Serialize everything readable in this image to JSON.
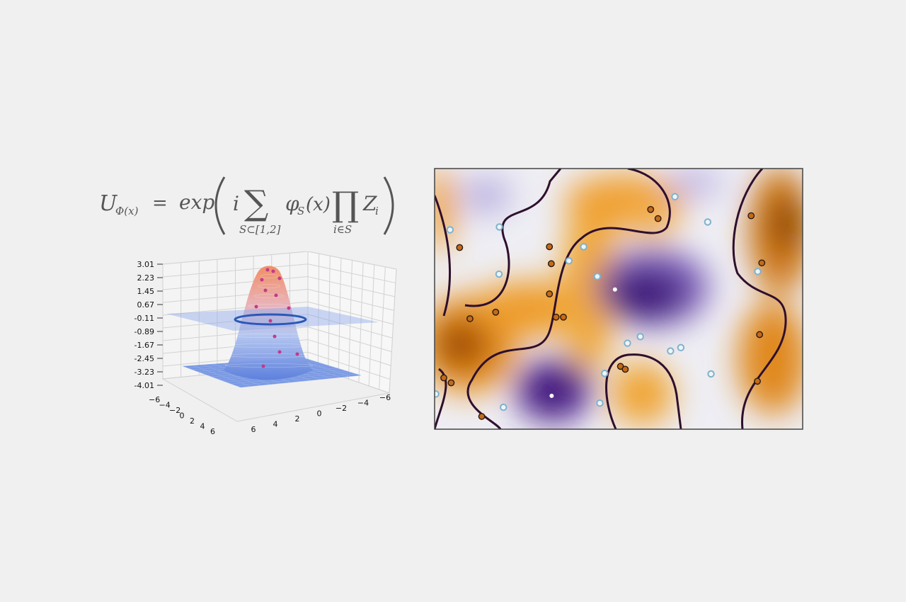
{
  "formula": {
    "lhs_main": "U",
    "lhs_sub": "Φ(x)",
    "equals": "=",
    "exp": "exp",
    "i": "i",
    "sum_symbol": "∑",
    "sum_sub": "S⊂[1,2]",
    "phi": "φ",
    "phi_sub": "S",
    "phi_arg": "(x)",
    "prod_symbol": "∏",
    "prod_sub": "i∈S",
    "z": "Z",
    "z_sub": "i"
  },
  "chart_data": [
    {
      "type": "surface3d",
      "z_ticks": [
        "3.01",
        "2.23",
        "1.45",
        "0.67",
        "-0.11",
        "-0.89",
        "-1.67",
        "-2.45",
        "-3.23",
        "-4.01"
      ],
      "x_ticks_left": [
        "−6",
        "−4",
        "−2",
        "0",
        "2",
        "4",
        "6"
      ],
      "x_ticks_right": [
        "6",
        "4",
        "2",
        "0",
        "−2",
        "−4",
        "−6"
      ],
      "zlim": [
        -4.01,
        3.01
      ],
      "colors": {
        "surface_top": "#f4a47c",
        "surface_bottom": "#6a8ce0",
        "plane": "#8fa9ea",
        "ring": "#2b58b8",
        "points": "#c23a8a"
      },
      "grid": true
    },
    {
      "type": "heatmap",
      "xlim": [
        0,
        1
      ],
      "ylim": [
        0,
        1
      ],
      "colormap": [
        "#7a3f00",
        "#f0a030",
        "#f3f3f8",
        "#8f7dc2",
        "#3a1070"
      ],
      "decision_boundary_color": "#2e0f2e",
      "class_a_color": "#c46a1a",
      "class_b_color": "#7fb2cc",
      "class_a_points": [
        [
          0.587,
          0.843
        ],
        [
          0.607,
          0.808
        ],
        [
          0.068,
          0.697
        ],
        [
          0.312,
          0.7
        ],
        [
          0.317,
          0.635
        ],
        [
          0.312,
          0.519
        ],
        [
          0.33,
          0.43
        ],
        [
          0.35,
          0.43
        ],
        [
          0.166,
          0.449
        ],
        [
          0.096,
          0.424
        ],
        [
          0.025,
          0.197
        ],
        [
          0.045,
          0.178
        ],
        [
          0.128,
          0.049
        ],
        [
          0.505,
          0.241
        ],
        [
          0.518,
          0.23
        ],
        [
          0.86,
          0.819
        ],
        [
          0.889,
          0.638
        ],
        [
          0.883,
          0.363
        ],
        [
          0.877,
          0.184
        ]
      ],
      "class_b_points": [
        [
          0.042,
          0.765
        ],
        [
          0.176,
          0.776
        ],
        [
          0.175,
          0.595
        ],
        [
          0.405,
          0.7
        ],
        [
          0.365,
          0.646
        ],
        [
          0.442,
          0.586
        ],
        [
          0.653,
          0.892
        ],
        [
          0.742,
          0.795
        ],
        [
          0.878,
          0.605
        ],
        [
          0.524,
          0.33
        ],
        [
          0.559,
          0.355
        ],
        [
          0.641,
          0.3
        ],
        [
          0.669,
          0.313
        ],
        [
          0.462,
          0.214
        ],
        [
          0.751,
          0.212
        ],
        [
          0.449,
          0.1
        ],
        [
          0.187,
          0.084
        ],
        [
          0.003,
          0.135
        ]
      ],
      "minima_points": [
        [
          0.49,
          0.536
        ],
        [
          0.318,
          0.128
        ]
      ],
      "grid": false
    }
  ]
}
